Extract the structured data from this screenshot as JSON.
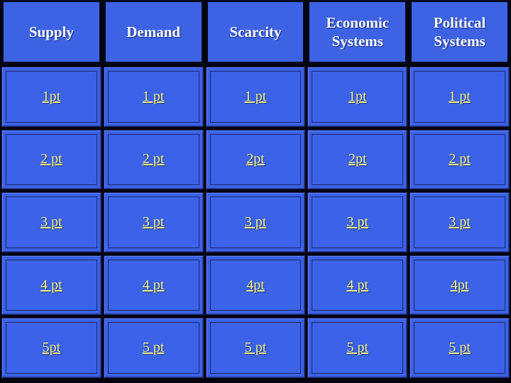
{
  "board": {
    "colors": {
      "cell_blue": "#3b62e8",
      "header_blue": "#3d63e4",
      "header_text": "#ffffff",
      "link_yellow": "#f0ef87",
      "outline_navy": "#1f2766",
      "background": "#02030f"
    },
    "columns": [
      {
        "header": "Supply",
        "cells": [
          "1pt",
          "2 pt",
          "3 pt",
          "4 pt",
          "5pt"
        ]
      },
      {
        "header": "Demand",
        "cells": [
          "1 pt",
          "2 pt",
          "3 pt",
          "4 pt",
          "5 pt"
        ]
      },
      {
        "header": "Scarcity",
        "cells": [
          "1 pt",
          "2pt",
          "3 pt",
          "4pt",
          "5 pt"
        ]
      },
      {
        "header": "Economic Systems",
        "cells": [
          "1pt",
          "2pt",
          "3 pt",
          "4 pt",
          "5 pt"
        ]
      },
      {
        "header": "Political Systems",
        "cells": [
          "1 pt",
          "2 pt",
          "3 pt",
          "4pt",
          "5 pt"
        ]
      }
    ]
  }
}
